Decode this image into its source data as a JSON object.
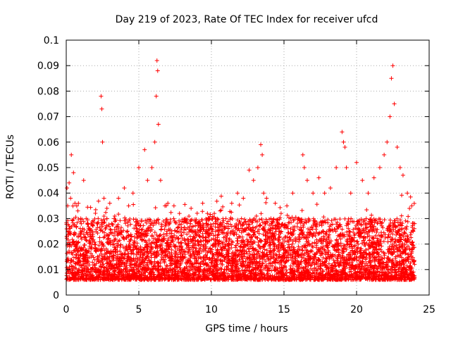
{
  "chart_data": {
    "type": "scatter",
    "title": "Day 219 of 2023, Rate Of TEC Index for receiver ufcd",
    "xlabel": "GPS time / hours",
    "ylabel": "ROTI / TECUs",
    "xlim": [
      0,
      25
    ],
    "ylim": [
      0,
      0.1
    ],
    "xticks": [
      0,
      5,
      10,
      15,
      20,
      25
    ],
    "yticks": [
      0,
      0.01,
      0.02,
      0.03,
      0.04,
      0.05,
      0.06,
      0.07,
      0.08,
      0.09,
      0.1
    ],
    "grid": true,
    "marker": "+",
    "color": "#ff0000",
    "series": [
      {
        "x": [
          0.05,
          0.1,
          0.2,
          0.3,
          0.35,
          0.5,
          0.6,
          0.8,
          1.0,
          1.2,
          1.5,
          1.8,
          2.2,
          2.4,
          2.45,
          2.5,
          2.6,
          2.8,
          3.0,
          3.3,
          3.6,
          4.0,
          4.3,
          4.6,
          5.0,
          5.4,
          5.6,
          5.9,
          6.1,
          6.2,
          6.25,
          6.3,
          6.35,
          6.5,
          6.8,
          7.0,
          7.4,
          7.8,
          8.2,
          8.6,
          9.0,
          9.4,
          9.8,
          10.2,
          10.6,
          11.0,
          11.4,
          11.8,
          12.2,
          12.6,
          12.9,
          13.2,
          13.4,
          13.5,
          13.6,
          13.8,
          14.1,
          14.4,
          14.8,
          15.2,
          15.6,
          16.0,
          16.3,
          16.4,
          16.6,
          17.0,
          17.4,
          17.8,
          18.2,
          18.6,
          19.0,
          19.1,
          19.2,
          19.3,
          19.6,
          20.0,
          20.4,
          20.8,
          21.2,
          21.6,
          21.9,
          22.1,
          22.3,
          22.4,
          22.5,
          22.6,
          22.8,
          23.0,
          23.2,
          23.5,
          23.8,
          24.0
        ],
        "y": [
          0.042,
          0.035,
          0.044,
          0.038,
          0.055,
          0.048,
          0.036,
          0.033,
          0.03,
          0.045,
          0.028,
          0.025,
          0.03,
          0.078,
          0.073,
          0.06,
          0.038,
          0.034,
          0.036,
          0.03,
          0.038,
          0.042,
          0.035,
          0.04,
          0.05,
          0.057,
          0.045,
          0.05,
          0.06,
          0.078,
          0.092,
          0.088,
          0.067,
          0.045,
          0.035,
          0.036,
          0.03,
          0.032,
          0.03,
          0.034,
          0.028,
          0.036,
          0.03,
          0.032,
          0.033,
          0.03,
          0.036,
          0.04,
          0.038,
          0.049,
          0.045,
          0.05,
          0.059,
          0.055,
          0.04,
          0.038,
          0.03,
          0.036,
          0.032,
          0.035,
          0.04,
          0.03,
          0.055,
          0.05,
          0.045,
          0.04,
          0.046,
          0.04,
          0.042,
          0.05,
          0.064,
          0.06,
          0.058,
          0.05,
          0.04,
          0.052,
          0.045,
          0.04,
          0.046,
          0.05,
          0.055,
          0.06,
          0.07,
          0.085,
          0.09,
          0.075,
          0.058,
          0.05,
          0.047,
          0.04,
          0.035,
          0.028
        ]
      }
    ]
  }
}
